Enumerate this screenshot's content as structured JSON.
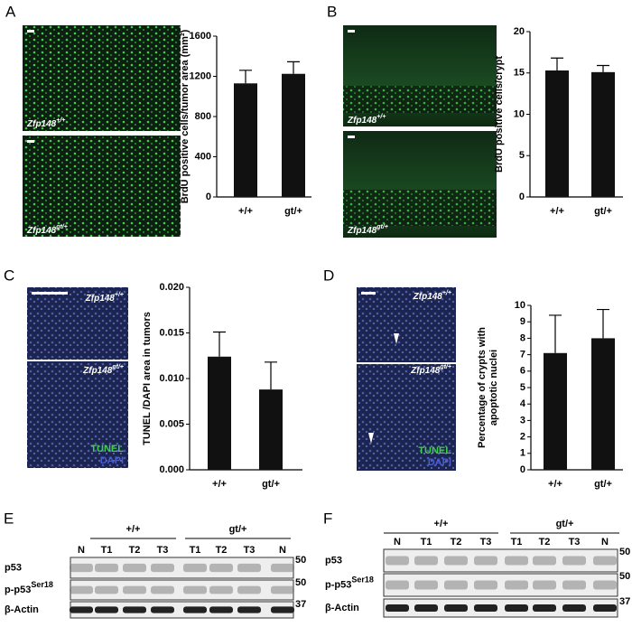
{
  "panels": {
    "a": "A",
    "b": "B",
    "c": "C",
    "d": "D",
    "e": "E",
    "f": "F"
  },
  "images": {
    "a_top": {
      "gene": "Zfp148",
      "genotype": "+/+"
    },
    "a_bottom": {
      "gene": "Zfp148",
      "genotype": "gt/+"
    },
    "b_top": {
      "gene": "Zfp148",
      "genotype": "+/+"
    },
    "b_bottom": {
      "gene": "Zfp148",
      "genotype": "gt/+"
    },
    "c_top": {
      "gene": "Zfp148",
      "genotype": "+/+"
    },
    "c_bottom": {
      "gene": "Zfp148",
      "genotype": "gt/+"
    },
    "c_stain": [
      "TUNEL",
      "DAPI"
    ],
    "d_top": {
      "gene": "Zfp148",
      "genotype": "+/+"
    },
    "d_bottom": {
      "gene": "Zfp148",
      "genotype": "gt/+"
    },
    "d_stain": [
      "TUNEL",
      "DAPI"
    ]
  },
  "chart_data": [
    {
      "type": "bar",
      "ylabel": "BrdU positive cells/tumor area (mm²)",
      "categories": [
        "+/+",
        "gt/+"
      ],
      "values": [
        1130,
        1225
      ],
      "errors": [
        130,
        120
      ],
      "color": "#111111",
      "ylim": [
        0,
        1600
      ],
      "yticks": [
        0,
        400,
        800,
        1200,
        1600
      ]
    },
    {
      "type": "bar",
      "ylabel": "BrdU positive cells/crypt",
      "categories": [
        "+/+",
        "gt/+"
      ],
      "values": [
        15.3,
        15.1
      ],
      "errors": [
        1.5,
        0.8
      ],
      "color": "#111111",
      "ylim": [
        0,
        20
      ],
      "yticks": [
        0,
        5,
        10,
        15,
        20
      ]
    },
    {
      "type": "bar",
      "ylabel": "TUNEL /DAPI area in tumors",
      "categories": [
        "+/+",
        "gt/+"
      ],
      "values": [
        0.0124,
        0.0088
      ],
      "errors": [
        0.0027,
        0.003
      ],
      "color": "#111111",
      "ylim": [
        0,
        0.02
      ],
      "yticks": [
        {
          "value": 0,
          "label": "0.000"
        },
        {
          "value": 0.005,
          "label": "0.005"
        },
        {
          "value": 0.01,
          "label": "0.010"
        },
        {
          "value": 0.015,
          "label": "0.015"
        },
        {
          "value": 0.02,
          "label": "0.020"
        }
      ]
    },
    {
      "type": "bar",
      "ylabel": [
        "Percentage of crypts with",
        "apoptotic nuclei"
      ],
      "categories": [
        "+/+",
        "gt/+"
      ],
      "values": [
        7.1,
        8.0
      ],
      "errors": [
        2.3,
        1.75
      ],
      "color": "#111111",
      "ylim": [
        0,
        10
      ],
      "yticks": [
        0,
        1,
        2,
        3,
        4,
        5,
        6,
        7,
        8,
        9,
        10
      ]
    }
  ],
  "blots": {
    "e": {
      "groups": [
        "+/+",
        "gt/+"
      ],
      "lanes": [
        "N",
        "T1",
        "T2",
        "T3",
        "T1",
        "T2",
        "T3",
        "N"
      ],
      "rows": [
        {
          "name": "p53",
          "sup": "",
          "marker": "50"
        },
        {
          "name": "p-p53",
          "sup": "Ser18",
          "marker": "50"
        },
        {
          "name": "β-Actin",
          "sup": "",
          "marker": "37"
        }
      ]
    },
    "f": {
      "groups": [
        "+/+",
        "gt/+"
      ],
      "lanes": [
        "N",
        "T1",
        "T2",
        "T3",
        "T1",
        "T2",
        "T3",
        "N"
      ],
      "rows": [
        {
          "name": "p53",
          "sup": "",
          "marker": "50"
        },
        {
          "name": "p-p53",
          "sup": "Ser18",
          "marker": "50"
        },
        {
          "name": "β-Actin",
          "sup": "",
          "marker": "37"
        }
      ]
    }
  }
}
